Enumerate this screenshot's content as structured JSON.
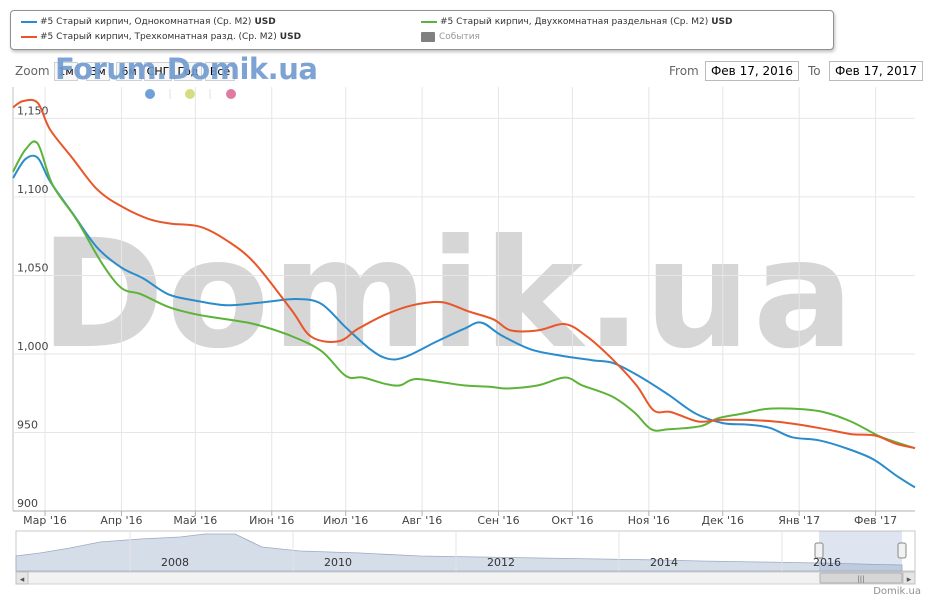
{
  "legend": {
    "items": [
      {
        "label": "#5 Старый кирпич, Однокомнатная (Ср. М2)",
        "unit": "USD",
        "color": "#2b8ccc"
      },
      {
        "label": "#5 Старый кирпич, Двухкомнатная раздельная (Ср. М2)",
        "unit": "USD",
        "color": "#5db33a"
      },
      {
        "label": "#5 Старый кирпич, Трехкомнатная разд. (Ср. М2)",
        "unit": "USD",
        "color": "#e8562a"
      }
    ],
    "events_label": "События"
  },
  "zoom": {
    "label": "Zoom",
    "buttons": [
      "1м",
      "3м",
      "6м",
      "СНГ",
      "Год",
      "Всё"
    ]
  },
  "logo_text": "Forum.Domik.ua",
  "range": {
    "from_label": "From",
    "from_value": "Фев 17, 2016",
    "to_label": "To",
    "to_value": "Фев 17, 2017"
  },
  "watermark": "Domik.ua",
  "credit": "Domik.ua",
  "event_dot_colors": [
    "#6fa0d8",
    "#d8dc80",
    "#e07aa0"
  ],
  "navigator": {
    "year_labels": [
      "2008",
      "2010",
      "2012",
      "2014",
      "2016"
    ],
    "scroll_left": "◂",
    "scroll_right": "▸",
    "grip": "|||"
  },
  "chart_data": {
    "type": "line",
    "title": "",
    "xlabel": "",
    "ylabel": "",
    "ylim": [
      900,
      1170
    ],
    "yticks": [
      900,
      950,
      1000,
      1050,
      1100,
      1150
    ],
    "ytick_labels": [
      "900",
      "950",
      "1,000",
      "1,050",
      "1,100",
      "1,150"
    ],
    "xlim": [
      "2016-02-17",
      "2017-02-17"
    ],
    "xticks": [
      {
        "date": "2016-03-01",
        "label": "Мар '16"
      },
      {
        "date": "2016-04-01",
        "label": "Апр '16"
      },
      {
        "date": "2016-05-01",
        "label": "Май '16"
      },
      {
        "date": "2016-06-01",
        "label": "Июн '16"
      },
      {
        "date": "2016-07-01",
        "label": "Июл '16"
      },
      {
        "date": "2016-08-01",
        "label": "Авг '16"
      },
      {
        "date": "2016-09-01",
        "label": "Сен '16"
      },
      {
        "date": "2016-10-01",
        "label": "Окт '16"
      },
      {
        "date": "2016-11-01",
        "label": "Ноя '16"
      },
      {
        "date": "2016-12-01",
        "label": "Дек '16"
      },
      {
        "date": "2017-01-01",
        "label": "Янв '17"
      },
      {
        "date": "2017-02-01",
        "label": "Фев '17"
      }
    ],
    "grid": true,
    "legend_position": "top",
    "series": [
      {
        "name": "#5 Старый кирпич, Однокомнатная (Ср. М2)",
        "color": "#2b8ccc",
        "points": [
          [
            "2016-02-17",
            1112
          ],
          [
            "2016-02-22",
            1124
          ],
          [
            "2016-02-27",
            1125
          ],
          [
            "2016-03-03",
            1110
          ],
          [
            "2016-03-12",
            1090
          ],
          [
            "2016-03-22",
            1068
          ],
          [
            "2016-04-01",
            1055
          ],
          [
            "2016-04-10",
            1048
          ],
          [
            "2016-04-20",
            1038
          ],
          [
            "2016-05-01",
            1034
          ],
          [
            "2016-05-14",
            1031
          ],
          [
            "2016-05-29",
            1033
          ],
          [
            "2016-06-11",
            1035
          ],
          [
            "2016-06-21",
            1032
          ],
          [
            "2016-07-01",
            1017
          ],
          [
            "2016-07-11",
            1003
          ],
          [
            "2016-07-18",
            997
          ],
          [
            "2016-07-25",
            998
          ],
          [
            "2016-08-07",
            1008
          ],
          [
            "2016-08-18",
            1016
          ],
          [
            "2016-08-25",
            1020
          ],
          [
            "2016-09-02",
            1012
          ],
          [
            "2016-09-14",
            1003
          ],
          [
            "2016-09-26",
            999
          ],
          [
            "2016-10-09",
            996
          ],
          [
            "2016-10-18",
            994
          ],
          [
            "2016-10-29",
            985
          ],
          [
            "2016-11-09",
            974
          ],
          [
            "2016-11-20",
            962
          ],
          [
            "2016-12-01",
            956
          ],
          [
            "2016-12-11",
            955
          ],
          [
            "2016-12-20",
            953
          ],
          [
            "2016-12-29",
            947
          ],
          [
            "2017-01-09",
            945
          ],
          [
            "2017-01-20",
            940
          ],
          [
            "2017-01-31",
            933
          ],
          [
            "2017-02-09",
            923
          ],
          [
            "2017-02-17",
            915
          ]
        ]
      },
      {
        "name": "#5 Старый кирпич, Двухкомнатная раздельная (Ср. М2)",
        "color": "#5db33a",
        "points": [
          [
            "2016-02-17",
            1116
          ],
          [
            "2016-02-22",
            1130
          ],
          [
            "2016-02-27",
            1134
          ],
          [
            "2016-03-04",
            1108
          ],
          [
            "2016-03-14",
            1085
          ],
          [
            "2016-03-24",
            1058
          ],
          [
            "2016-04-01",
            1042
          ],
          [
            "2016-04-09",
            1038
          ],
          [
            "2016-04-20",
            1030
          ],
          [
            "2016-05-02",
            1025
          ],
          [
            "2016-05-14",
            1022
          ],
          [
            "2016-05-25",
            1019
          ],
          [
            "2016-06-08",
            1012
          ],
          [
            "2016-06-21",
            1002
          ],
          [
            "2016-07-01",
            986
          ],
          [
            "2016-07-08",
            985
          ],
          [
            "2016-07-17",
            981
          ],
          [
            "2016-07-23",
            980
          ],
          [
            "2016-07-29",
            984
          ],
          [
            "2016-08-09",
            982
          ],
          [
            "2016-08-18",
            980
          ],
          [
            "2016-08-29",
            979
          ],
          [
            "2016-09-05",
            978
          ],
          [
            "2016-09-17",
            980
          ],
          [
            "2016-09-28",
            985
          ],
          [
            "2016-10-05",
            980
          ],
          [
            "2016-10-17",
            973
          ],
          [
            "2016-10-26",
            963
          ],
          [
            "2016-11-02",
            952
          ],
          [
            "2016-11-09",
            952
          ],
          [
            "2016-11-22",
            954
          ],
          [
            "2016-11-29",
            959
          ],
          [
            "2016-12-09",
            962
          ],
          [
            "2016-12-19",
            965
          ],
          [
            "2016-12-31",
            965
          ],
          [
            "2017-01-11",
            963
          ],
          [
            "2017-01-22",
            957
          ],
          [
            "2017-02-02",
            948
          ],
          [
            "2017-02-09",
            944
          ],
          [
            "2017-02-17",
            940
          ]
        ]
      },
      {
        "name": "#5 Старый кирпич, Трехкомнатная разд. (Ср. М2)",
        "color": "#e8562a",
        "points": [
          [
            "2016-02-17",
            1157
          ],
          [
            "2016-02-21",
            1161
          ],
          [
            "2016-02-27",
            1160
          ],
          [
            "2016-03-03",
            1143
          ],
          [
            "2016-03-12",
            1125
          ],
          [
            "2016-03-22",
            1105
          ],
          [
            "2016-04-01",
            1094
          ],
          [
            "2016-04-12",
            1086
          ],
          [
            "2016-04-21",
            1083
          ],
          [
            "2016-05-03",
            1081
          ],
          [
            "2016-05-14",
            1072
          ],
          [
            "2016-05-25",
            1058
          ],
          [
            "2016-06-09",
            1028
          ],
          [
            "2016-06-17",
            1011
          ],
          [
            "2016-06-28",
            1008
          ],
          [
            "2016-07-06",
            1016
          ],
          [
            "2016-07-17",
            1025
          ],
          [
            "2016-07-28",
            1031
          ],
          [
            "2016-08-09",
            1033
          ],
          [
            "2016-08-20",
            1027
          ],
          [
            "2016-08-30",
            1022
          ],
          [
            "2016-09-06",
            1015
          ],
          [
            "2016-09-17",
            1015
          ],
          [
            "2016-09-28",
            1019
          ],
          [
            "2016-10-07",
            1011
          ],
          [
            "2016-10-17",
            997
          ],
          [
            "2016-10-27",
            980
          ],
          [
            "2016-11-03",
            964
          ],
          [
            "2016-11-10",
            963
          ],
          [
            "2016-11-21",
            957
          ],
          [
            "2016-11-30",
            958
          ],
          [
            "2016-12-11",
            958
          ],
          [
            "2016-12-22",
            957
          ],
          [
            "2017-01-01",
            955
          ],
          [
            "2017-01-12",
            952
          ],
          [
            "2017-01-22",
            949
          ],
          [
            "2017-02-01",
            948
          ],
          [
            "2017-02-09",
            943
          ],
          [
            "2017-02-17",
            940
          ]
        ]
      }
    ]
  }
}
